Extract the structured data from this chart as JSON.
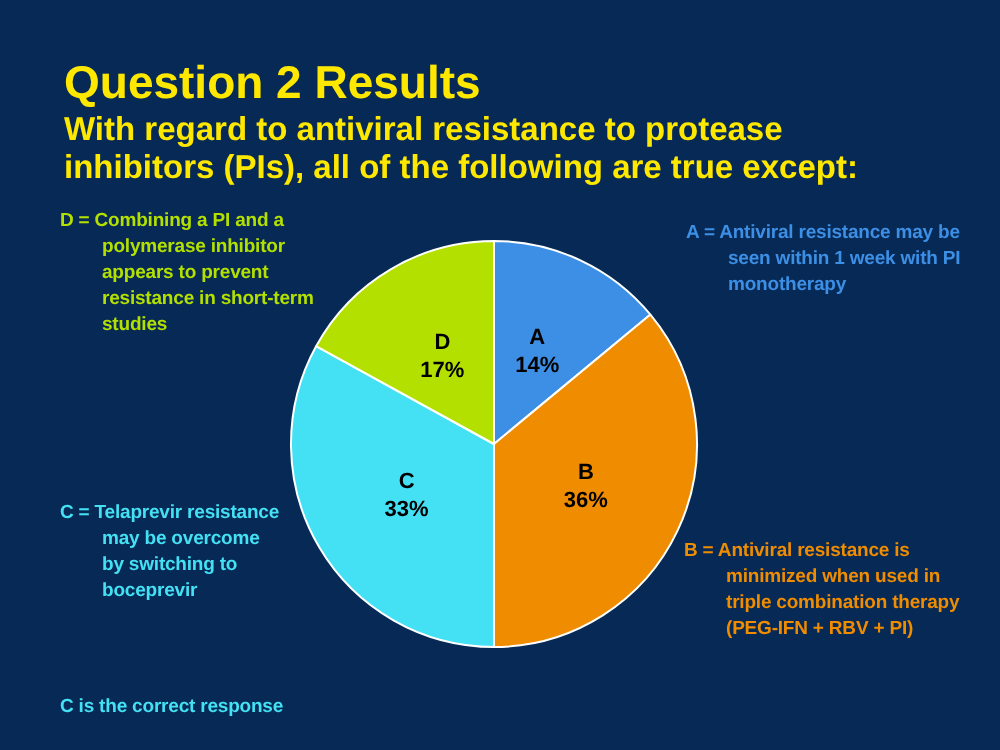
{
  "chart_data": {
    "type": "pie",
    "title": "Question 2 Results",
    "subtitle": "With regard to antiviral resistance to protease inhibitors (PIs), all of the following are true except:",
    "categories": [
      "A",
      "B",
      "C",
      "D"
    ],
    "values": [
      14,
      36,
      33,
      17
    ],
    "colors": [
      "#3d8fe6",
      "#f08c00",
      "#44e0f4",
      "#b4e000"
    ],
    "value_labels": [
      "14%",
      "36%",
      "33%",
      "17%"
    ],
    "annotations": [
      "A = Antiviral resistance may be seen within 1 week with PI monotherapy",
      "B = Antiviral resistance is minimized when used in triple combination therapy (PEG-IFN + RBV + PI)",
      "C = Telaprevir resistance may be overcome by switching to boceprevir",
      "D = Combining a PI and a polymerase inhibitor appears to prevent resistance in short-term studies",
      "C is the correct response"
    ]
  }
}
